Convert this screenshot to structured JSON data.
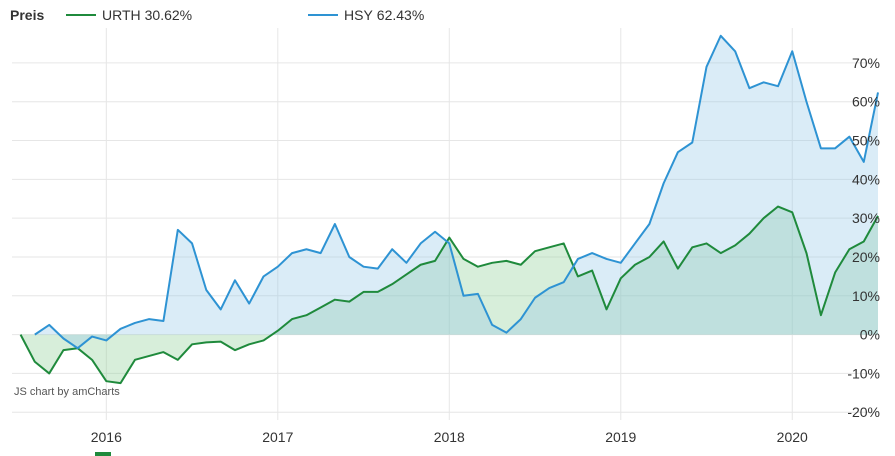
{
  "legend": {
    "title": "Preis",
    "items": [
      {
        "name": "URTH",
        "value": "30.62%",
        "color": "#1f8a3c"
      },
      {
        "name": "HSY",
        "value": "62.43%",
        "color": "#2e93d3"
      }
    ]
  },
  "credit": "JS chart by amCharts",
  "chart_data": {
    "type": "area",
    "x_unit": "year",
    "x_ticks": [
      "2016",
      "2017",
      "2018",
      "2019",
      "2020"
    ],
    "xlim": [
      2015.45,
      2020.5
    ],
    "ylim": [
      -22,
      79
    ],
    "y_ticks": [
      -20,
      -10,
      0,
      10,
      20,
      30,
      40,
      50,
      60,
      70
    ],
    "y_tick_labels": [
      "-20%",
      "-10%",
      "0%",
      "10%",
      "20%",
      "30%",
      "40%",
      "50%",
      "60%",
      "70%"
    ],
    "grid": true,
    "legend_position": "top-left",
    "series": [
      {
        "name": "URTH",
        "color": "#1f8a3c",
        "fill": "rgba(140,205,150,0.35)",
        "x": [
          2015.5,
          2015.583,
          2015.667,
          2015.75,
          2015.833,
          2015.917,
          2016.0,
          2016.083,
          2016.167,
          2016.25,
          2016.333,
          2016.417,
          2016.5,
          2016.583,
          2016.667,
          2016.75,
          2016.833,
          2016.917,
          2017.0,
          2017.083,
          2017.167,
          2017.25,
          2017.333,
          2017.417,
          2017.5,
          2017.583,
          2017.667,
          2017.75,
          2017.833,
          2017.917,
          2018.0,
          2018.083,
          2018.167,
          2018.25,
          2018.333,
          2018.417,
          2018.5,
          2018.583,
          2018.667,
          2018.75,
          2018.833,
          2018.917,
          2019.0,
          2019.083,
          2019.167,
          2019.25,
          2019.333,
          2019.417,
          2019.5,
          2019.583,
          2019.667,
          2019.75,
          2019.833,
          2019.917,
          2020.0,
          2020.083,
          2020.167,
          2020.25,
          2020.333,
          2020.417,
          2020.5
        ],
        "values": [
          0,
          -7,
          -10,
          -4,
          -3.5,
          -6.5,
          -12,
          -12.5,
          -6.5,
          -5.5,
          -4.5,
          -6.5,
          -2.5,
          -2,
          -1.8,
          -4,
          -2.5,
          -1.5,
          1,
          4,
          5,
          7,
          9,
          8.5,
          11,
          11,
          13,
          15.5,
          18,
          19,
          25,
          19.5,
          17.5,
          18.5,
          19,
          18,
          21.5,
          22.5,
          23.5,
          15,
          16.5,
          6.5,
          14.5,
          18,
          20,
          24,
          17,
          22.5,
          23.5,
          21,
          23,
          26,
          30,
          33,
          31.5,
          21,
          5,
          16,
          22,
          24,
          30.6
        ]
      },
      {
        "name": "HSY",
        "color": "#2e93d3",
        "fill": "rgba(140,195,230,0.32)",
        "x": [
          2015.583,
          2015.667,
          2015.75,
          2015.833,
          2015.917,
          2016.0,
          2016.083,
          2016.167,
          2016.25,
          2016.333,
          2016.417,
          2016.5,
          2016.583,
          2016.667,
          2016.75,
          2016.833,
          2016.917,
          2017.0,
          2017.083,
          2017.167,
          2017.25,
          2017.333,
          2017.417,
          2017.5,
          2017.583,
          2017.667,
          2017.75,
          2017.833,
          2017.917,
          2018.0,
          2018.083,
          2018.167,
          2018.25,
          2018.333,
          2018.417,
          2018.5,
          2018.583,
          2018.667,
          2018.75,
          2018.833,
          2018.917,
          2019.0,
          2019.083,
          2019.167,
          2019.25,
          2019.333,
          2019.417,
          2019.5,
          2019.583,
          2019.667,
          2019.75,
          2019.833,
          2019.917,
          2020.0,
          2020.083,
          2020.167,
          2020.25,
          2020.333,
          2020.417,
          2020.5
        ],
        "values": [
          0,
          2.5,
          -1,
          -3.5,
          -0.5,
          -1.5,
          1.5,
          3,
          4,
          3.5,
          27,
          23.5,
          11.5,
          6.5,
          14,
          8,
          15,
          17.5,
          21,
          22,
          21,
          28.5,
          20,
          17.5,
          17,
          22,
          18.5,
          23.5,
          26.5,
          23.5,
          10,
          10.5,
          2.5,
          0.5,
          4,
          9.5,
          12,
          13.5,
          19.5,
          21,
          19.5,
          18.5,
          23.5,
          28.5,
          39,
          47,
          49.5,
          69,
          77,
          73,
          63.5,
          65,
          64,
          73,
          60,
          48,
          48,
          51,
          44.5,
          62.4
        ]
      }
    ]
  }
}
